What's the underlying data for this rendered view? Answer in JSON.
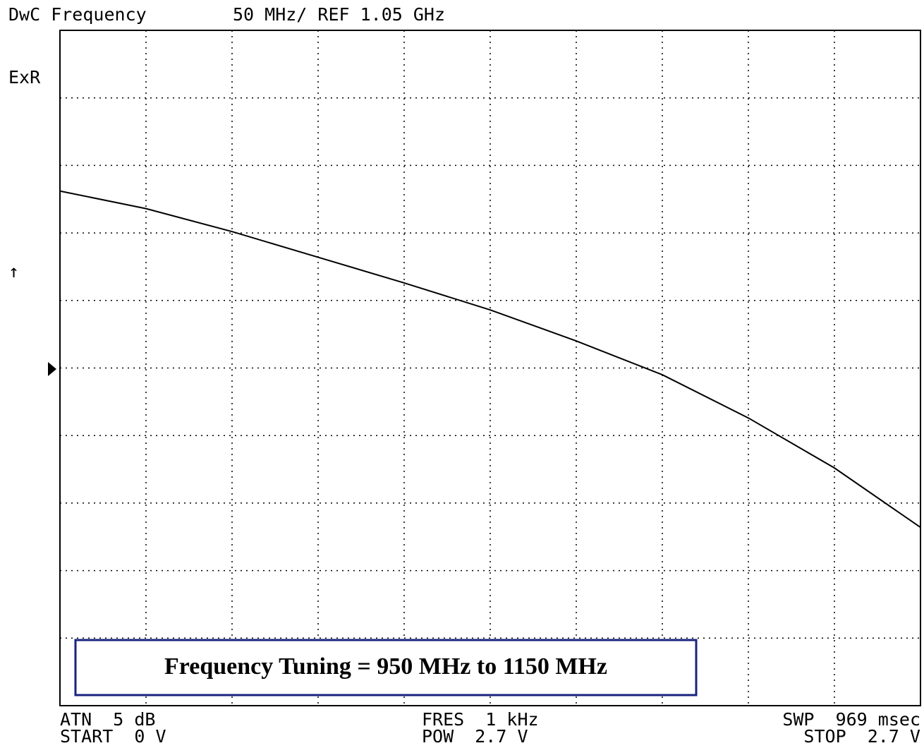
{
  "header": {
    "title": "DwC Frequency",
    "scale": "50 MHz/ REF 1.05 GHz",
    "mode": "ExR"
  },
  "footer": {
    "atn": "ATN  5 dB",
    "start": "START  0 V",
    "fres": "FRES  1 kHz",
    "pow": "POW  2.7 V",
    "swp": "SWP  969 msec",
    "stop": "STOP  2.7 V"
  },
  "chart_data": {
    "type": "line",
    "annotation": "Frequency Tuning = 950 MHz to 1150 MHz",
    "x": [
      0,
      0.27,
      0.54,
      0.81,
      1.08,
      1.35,
      1.62,
      1.89,
      2.16,
      2.43,
      2.7
    ],
    "series": [
      {
        "name": "Frequency",
        "color": "#000000",
        "values": [
          1181,
          1168,
          1151,
          1132,
          1113,
          1093,
          1070,
          1045,
          1013,
          976,
          932
        ]
      }
    ],
    "xlim": [
      0,
      2.7
    ],
    "ylim": [
      800,
      1300
    ]
  }
}
